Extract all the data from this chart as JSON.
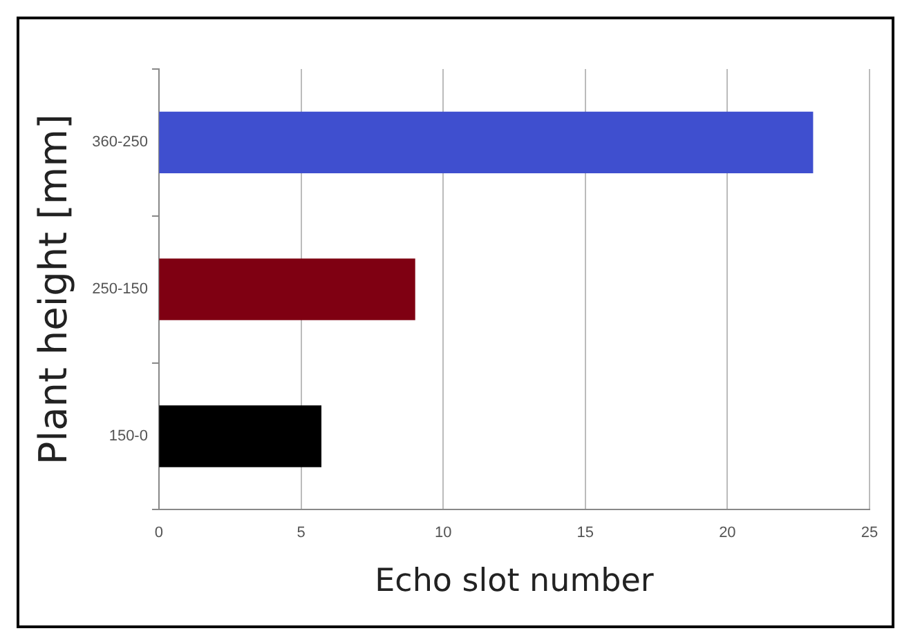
{
  "chart_data": {
    "type": "bar",
    "orientation": "horizontal",
    "categories": [
      "360-250",
      "250-150",
      "150-0"
    ],
    "values": [
      23,
      9,
      5.7
    ],
    "colors": [
      "#3f4fcf",
      "#7f0012",
      "#000000"
    ],
    "xlabel": "Echo slot number",
    "ylabel": "Plant height [mm]",
    "xlim": [
      0,
      25
    ],
    "xticks": [
      0,
      5,
      10,
      15,
      20,
      25
    ],
    "grid": "x",
    "legend": false
  }
}
